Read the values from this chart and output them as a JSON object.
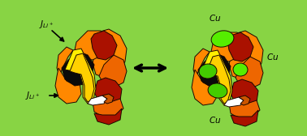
{
  "bg_color": "#88D444",
  "label_color": "#000000",
  "figsize": [
    3.78,
    1.68
  ],
  "dpi": 100,
  "outline": "#1A0800",
  "colors": {
    "orange_bright": "#FF8800",
    "orange_dark": "#CC5500",
    "orange_medium": "#EE6600",
    "red_dark": "#AA1100",
    "red_medium": "#CC2200",
    "black": "#0A0A0A",
    "yellow": "#FFEE00",
    "gold": "#FFD000",
    "white": "#FFFFFF",
    "brown": "#994400",
    "green_bright": "#55EE00",
    "green_medium": "#44CC00",
    "dark_red": "#881100"
  }
}
